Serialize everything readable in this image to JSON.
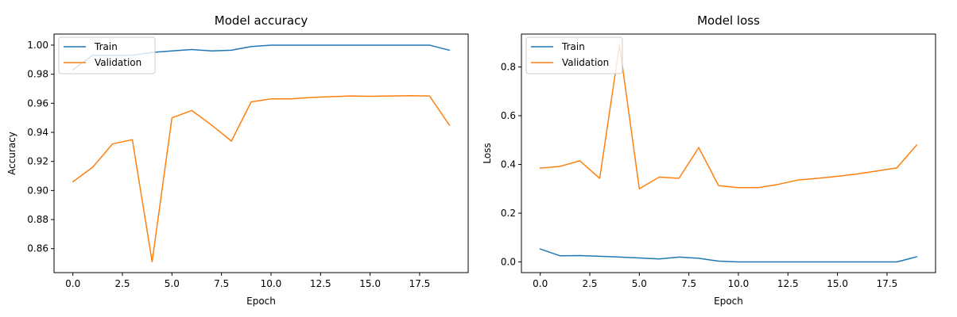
{
  "colors": {
    "train": "#1f77b4",
    "validation": "#ff7f0e",
    "axis": "#000000",
    "background": "#ffffff"
  },
  "chart_data": [
    {
      "type": "line",
      "title": "Model accuracy",
      "xlabel": "Epoch",
      "ylabel": "Accuracy",
      "xlim": [
        -0.95,
        19.95
      ],
      "ylim": [
        0.8435,
        1.0076
      ],
      "xticks": [
        0.0,
        2.5,
        5.0,
        7.5,
        10.0,
        12.5,
        15.0,
        17.5
      ],
      "xtick_labels": [
        "0.0",
        "2.5",
        "5.0",
        "7.5",
        "10.0",
        "12.5",
        "15.0",
        "17.5"
      ],
      "yticks": [
        0.86,
        0.88,
        0.9,
        0.92,
        0.94,
        0.96,
        0.98,
        1.0
      ],
      "ytick_labels": [
        "0.86",
        "0.88",
        "0.90",
        "0.92",
        "0.94",
        "0.96",
        "0.98",
        "1.00"
      ],
      "legend_position": "upper-left",
      "x": [
        0,
        1,
        2,
        3,
        4,
        5,
        6,
        7,
        8,
        9,
        10,
        11,
        12,
        13,
        14,
        15,
        16,
        17,
        18,
        19
      ],
      "series": [
        {
          "name": "Train",
          "color": "#1f77b4",
          "values": [
            0.983,
            0.993,
            0.993,
            0.993,
            0.995,
            0.996,
            0.997,
            0.996,
            0.9965,
            0.999,
            1.0,
            1.0,
            1.0,
            1.0,
            1.0,
            1.0,
            1.0,
            1.0,
            1.0,
            0.9965
          ]
        },
        {
          "name": "Validation",
          "color": "#ff7f0e",
          "values": [
            0.906,
            0.916,
            0.932,
            0.935,
            0.851,
            0.95,
            0.955,
            0.945,
            0.934,
            0.961,
            0.963,
            0.963,
            0.964,
            0.9645,
            0.965,
            0.9648,
            0.965,
            0.9652,
            0.965,
            0.945
          ]
        }
      ]
    },
    {
      "type": "line",
      "title": "Model loss",
      "xlabel": "Epoch",
      "ylabel": "Loss",
      "xlim": [
        -0.95,
        19.95
      ],
      "ylim": [
        -0.044,
        0.935
      ],
      "xticks": [
        0.0,
        2.5,
        5.0,
        7.5,
        10.0,
        12.5,
        15.0,
        17.5
      ],
      "xtick_labels": [
        "0.0",
        "2.5",
        "5.0",
        "7.5",
        "10.0",
        "12.5",
        "15.0",
        "17.5"
      ],
      "yticks": [
        0.0,
        0.2,
        0.4,
        0.6,
        0.8
      ],
      "ytick_labels": [
        "0.0",
        "0.2",
        "0.4",
        "0.6",
        "0.8"
      ],
      "legend_position": "upper-left",
      "x": [
        0,
        1,
        2,
        3,
        4,
        5,
        6,
        7,
        8,
        9,
        10,
        11,
        12,
        13,
        14,
        15,
        16,
        17,
        18,
        19
      ],
      "series": [
        {
          "name": "Train",
          "color": "#1f77b4",
          "values": [
            0.053,
            0.025,
            0.026,
            0.023,
            0.02,
            0.016,
            0.012,
            0.02,
            0.015,
            0.003,
            0.0,
            0.0,
            0.0,
            0.0,
            0.0,
            0.0,
            0.0,
            0.0,
            0.0,
            0.021
          ]
        },
        {
          "name": "Validation",
          "color": "#ff7f0e",
          "values": [
            0.385,
            0.392,
            0.415,
            0.343,
            0.89,
            0.3,
            0.348,
            0.343,
            0.469,
            0.313,
            0.305,
            0.305,
            0.318,
            0.336,
            0.343,
            0.351,
            0.361,
            0.373,
            0.386,
            0.48
          ]
        }
      ]
    }
  ]
}
